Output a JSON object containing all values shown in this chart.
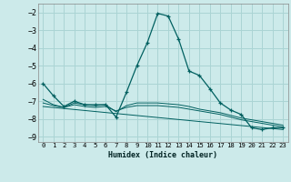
{
  "xlabel": "Humidex (Indice chaleur)",
  "background_color": "#cceaea",
  "grid_color": "#aad4d4",
  "line_color": "#006060",
  "xlim": [
    -0.5,
    23.5
  ],
  "ylim": [
    -9.3,
    -1.5
  ],
  "yticks": [
    -9,
    -8,
    -7,
    -6,
    -5,
    -4,
    -3,
    -2
  ],
  "xticks": [
    0,
    1,
    2,
    3,
    4,
    5,
    6,
    7,
    8,
    9,
    10,
    11,
    12,
    13,
    14,
    15,
    16,
    17,
    18,
    19,
    20,
    21,
    22,
    23
  ],
  "series_main": {
    "x": [
      0,
      1,
      2,
      3,
      4,
      5,
      6,
      7,
      8,
      9,
      10,
      11,
      12,
      13,
      14,
      15,
      16,
      17,
      18,
      19,
      20,
      21,
      22,
      23
    ],
    "y": [
      -6.0,
      -6.7,
      -7.3,
      -7.0,
      -7.2,
      -7.2,
      -7.2,
      -7.9,
      -6.5,
      -5.0,
      -3.7,
      -2.05,
      -2.2,
      -3.5,
      -5.3,
      -5.55,
      -6.3,
      -7.1,
      -7.5,
      -7.75,
      -8.5,
      -8.6,
      -8.5,
      -8.5
    ]
  },
  "series_flat": [
    {
      "x": [
        0,
        1,
        2,
        3,
        4,
        5,
        6,
        7,
        8,
        9,
        10,
        11,
        12,
        13,
        14,
        15,
        16,
        17,
        18,
        19,
        20,
        21,
        22,
        23
      ],
      "y": [
        -6.9,
        -7.2,
        -7.35,
        -7.1,
        -7.2,
        -7.25,
        -7.2,
        -7.6,
        -7.25,
        -7.1,
        -7.1,
        -7.1,
        -7.15,
        -7.2,
        -7.3,
        -7.45,
        -7.55,
        -7.65,
        -7.8,
        -7.95,
        -8.05,
        -8.15,
        -8.25,
        -8.35
      ]
    },
    {
      "x": [
        0,
        1,
        2,
        3,
        4,
        5,
        6,
        7,
        8,
        9,
        10,
        11,
        12,
        13,
        14,
        15,
        16,
        17,
        18,
        19,
        20,
        21,
        22,
        23
      ],
      "y": [
        -7.1,
        -7.25,
        -7.35,
        -7.2,
        -7.3,
        -7.35,
        -7.3,
        -7.55,
        -7.35,
        -7.25,
        -7.25,
        -7.25,
        -7.3,
        -7.35,
        -7.45,
        -7.55,
        -7.65,
        -7.75,
        -7.9,
        -8.05,
        -8.15,
        -8.25,
        -8.35,
        -8.45
      ]
    },
    {
      "x": [
        0,
        23
      ],
      "y": [
        -7.3,
        -8.6
      ]
    }
  ]
}
